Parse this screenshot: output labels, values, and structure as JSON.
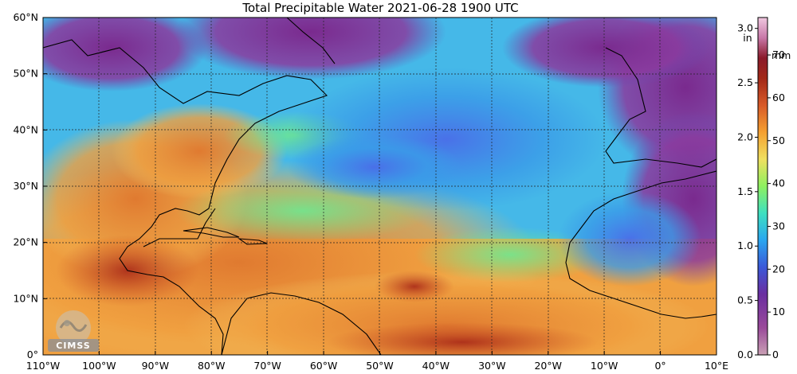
{
  "title": "Total Precipitable Water  2021-06-28 1900 UTC",
  "map": {
    "lat_ticks": [
      "0°",
      "10°N",
      "20°N",
      "30°N",
      "40°N",
      "50°N",
      "60°N"
    ],
    "lon_ticks": [
      "110°W",
      "100°W",
      "90°W",
      "80°W",
      "70°W",
      "60°W",
      "50°W",
      "40°W",
      "30°W",
      "20°W",
      "10°W",
      "0°",
      "10°E"
    ],
    "lat_range": [
      0,
      60
    ],
    "lon_range": [
      -110,
      10
    ],
    "gridlines": "dashed"
  },
  "colorbar": {
    "left_unit": "in",
    "right_unit": "mm",
    "left_ticks": [
      "0.0",
      "0.5",
      "1.0",
      "1.5",
      "2.0",
      "2.5",
      "3.0"
    ],
    "right_ticks": [
      "0",
      "10",
      "20",
      "30",
      "40",
      "50",
      "60",
      "70"
    ],
    "in_range": [
      0,
      3.1
    ],
    "mm_range": [
      0,
      78.74
    ],
    "colors": [
      "#b07d97",
      "#7a2a8e",
      "#4b2fb0",
      "#1e6fe0",
      "#2db8f0",
      "#48e0b0",
      "#8ef060",
      "#f0e060",
      "#f5a030",
      "#d85a28",
      "#a22818",
      "#8a1a2a",
      "#c878a8",
      "#f0c8e0"
    ]
  },
  "logo": {
    "text": "CIMSS"
  }
}
